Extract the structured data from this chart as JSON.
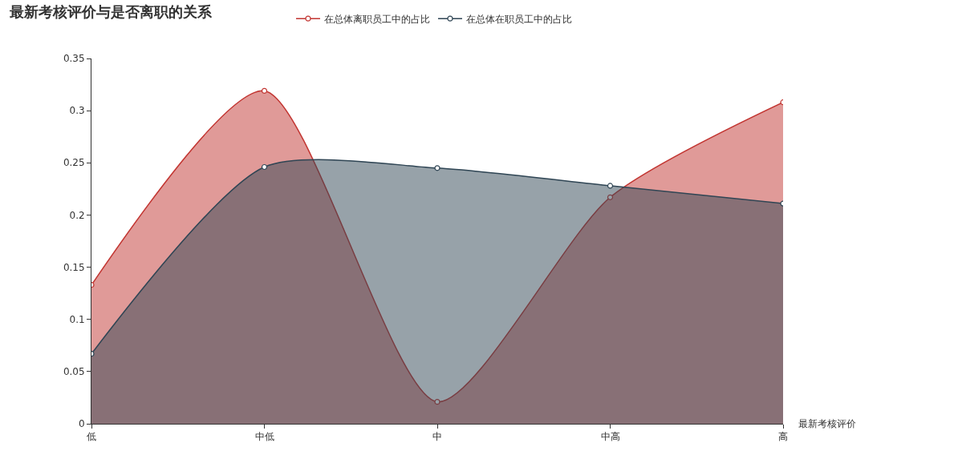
{
  "chart_data": {
    "type": "area",
    "title": "最新考核评价与是否离职的关系",
    "xlabel": "最新考核评价",
    "categories": [
      "低",
      "中低",
      "中",
      "中高",
      "高"
    ],
    "series": [
      {
        "name": "在总体离职员工中的占比",
        "color": "#c23531",
        "values": [
          0.133,
          0.319,
          0.021,
          0.217,
          0.308
        ]
      },
      {
        "name": "在总体在职员工中的占比",
        "color": "#2f4554",
        "values": [
          0.067,
          0.246,
          0.245,
          0.228,
          0.211
        ]
      }
    ],
    "ylim": [
      0,
      0.35
    ],
    "yticks": [
      0,
      0.05,
      0.1,
      0.15,
      0.2,
      0.25,
      0.3,
      0.35
    ],
    "legend": "top",
    "marker": "circle",
    "line_style": "solid"
  }
}
